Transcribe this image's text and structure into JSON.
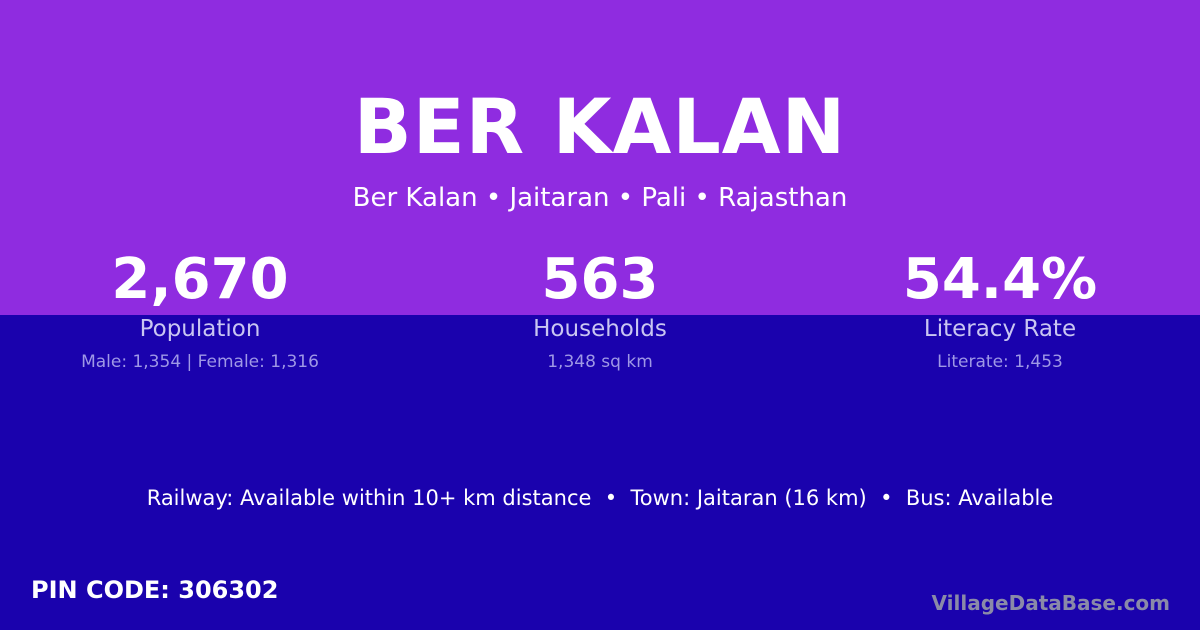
{
  "header": {
    "title": "BER KALAN",
    "location": "Ber Kalan • Jaitaran • Pali • Rajasthan"
  },
  "stats": [
    {
      "value": "2,670",
      "label": "Population",
      "sub": "Male: 1,354 | Female: 1,316"
    },
    {
      "value": "563",
      "label": "Households",
      "sub": "1,348 sq km"
    },
    {
      "value": "54.4%",
      "label": "Literacy Rate",
      "sub": "Literate: 1,453"
    }
  ],
  "connectivity": "Railway: Available within 10+ km distance  •  Town: Jaitaran (16 km)  •  Bus: Available",
  "pin": "PIN CODE: 306302",
  "brand": "VillageDataBase.com",
  "colors": {
    "top": "#8f2ce0",
    "bottom": "#1a02ad"
  }
}
